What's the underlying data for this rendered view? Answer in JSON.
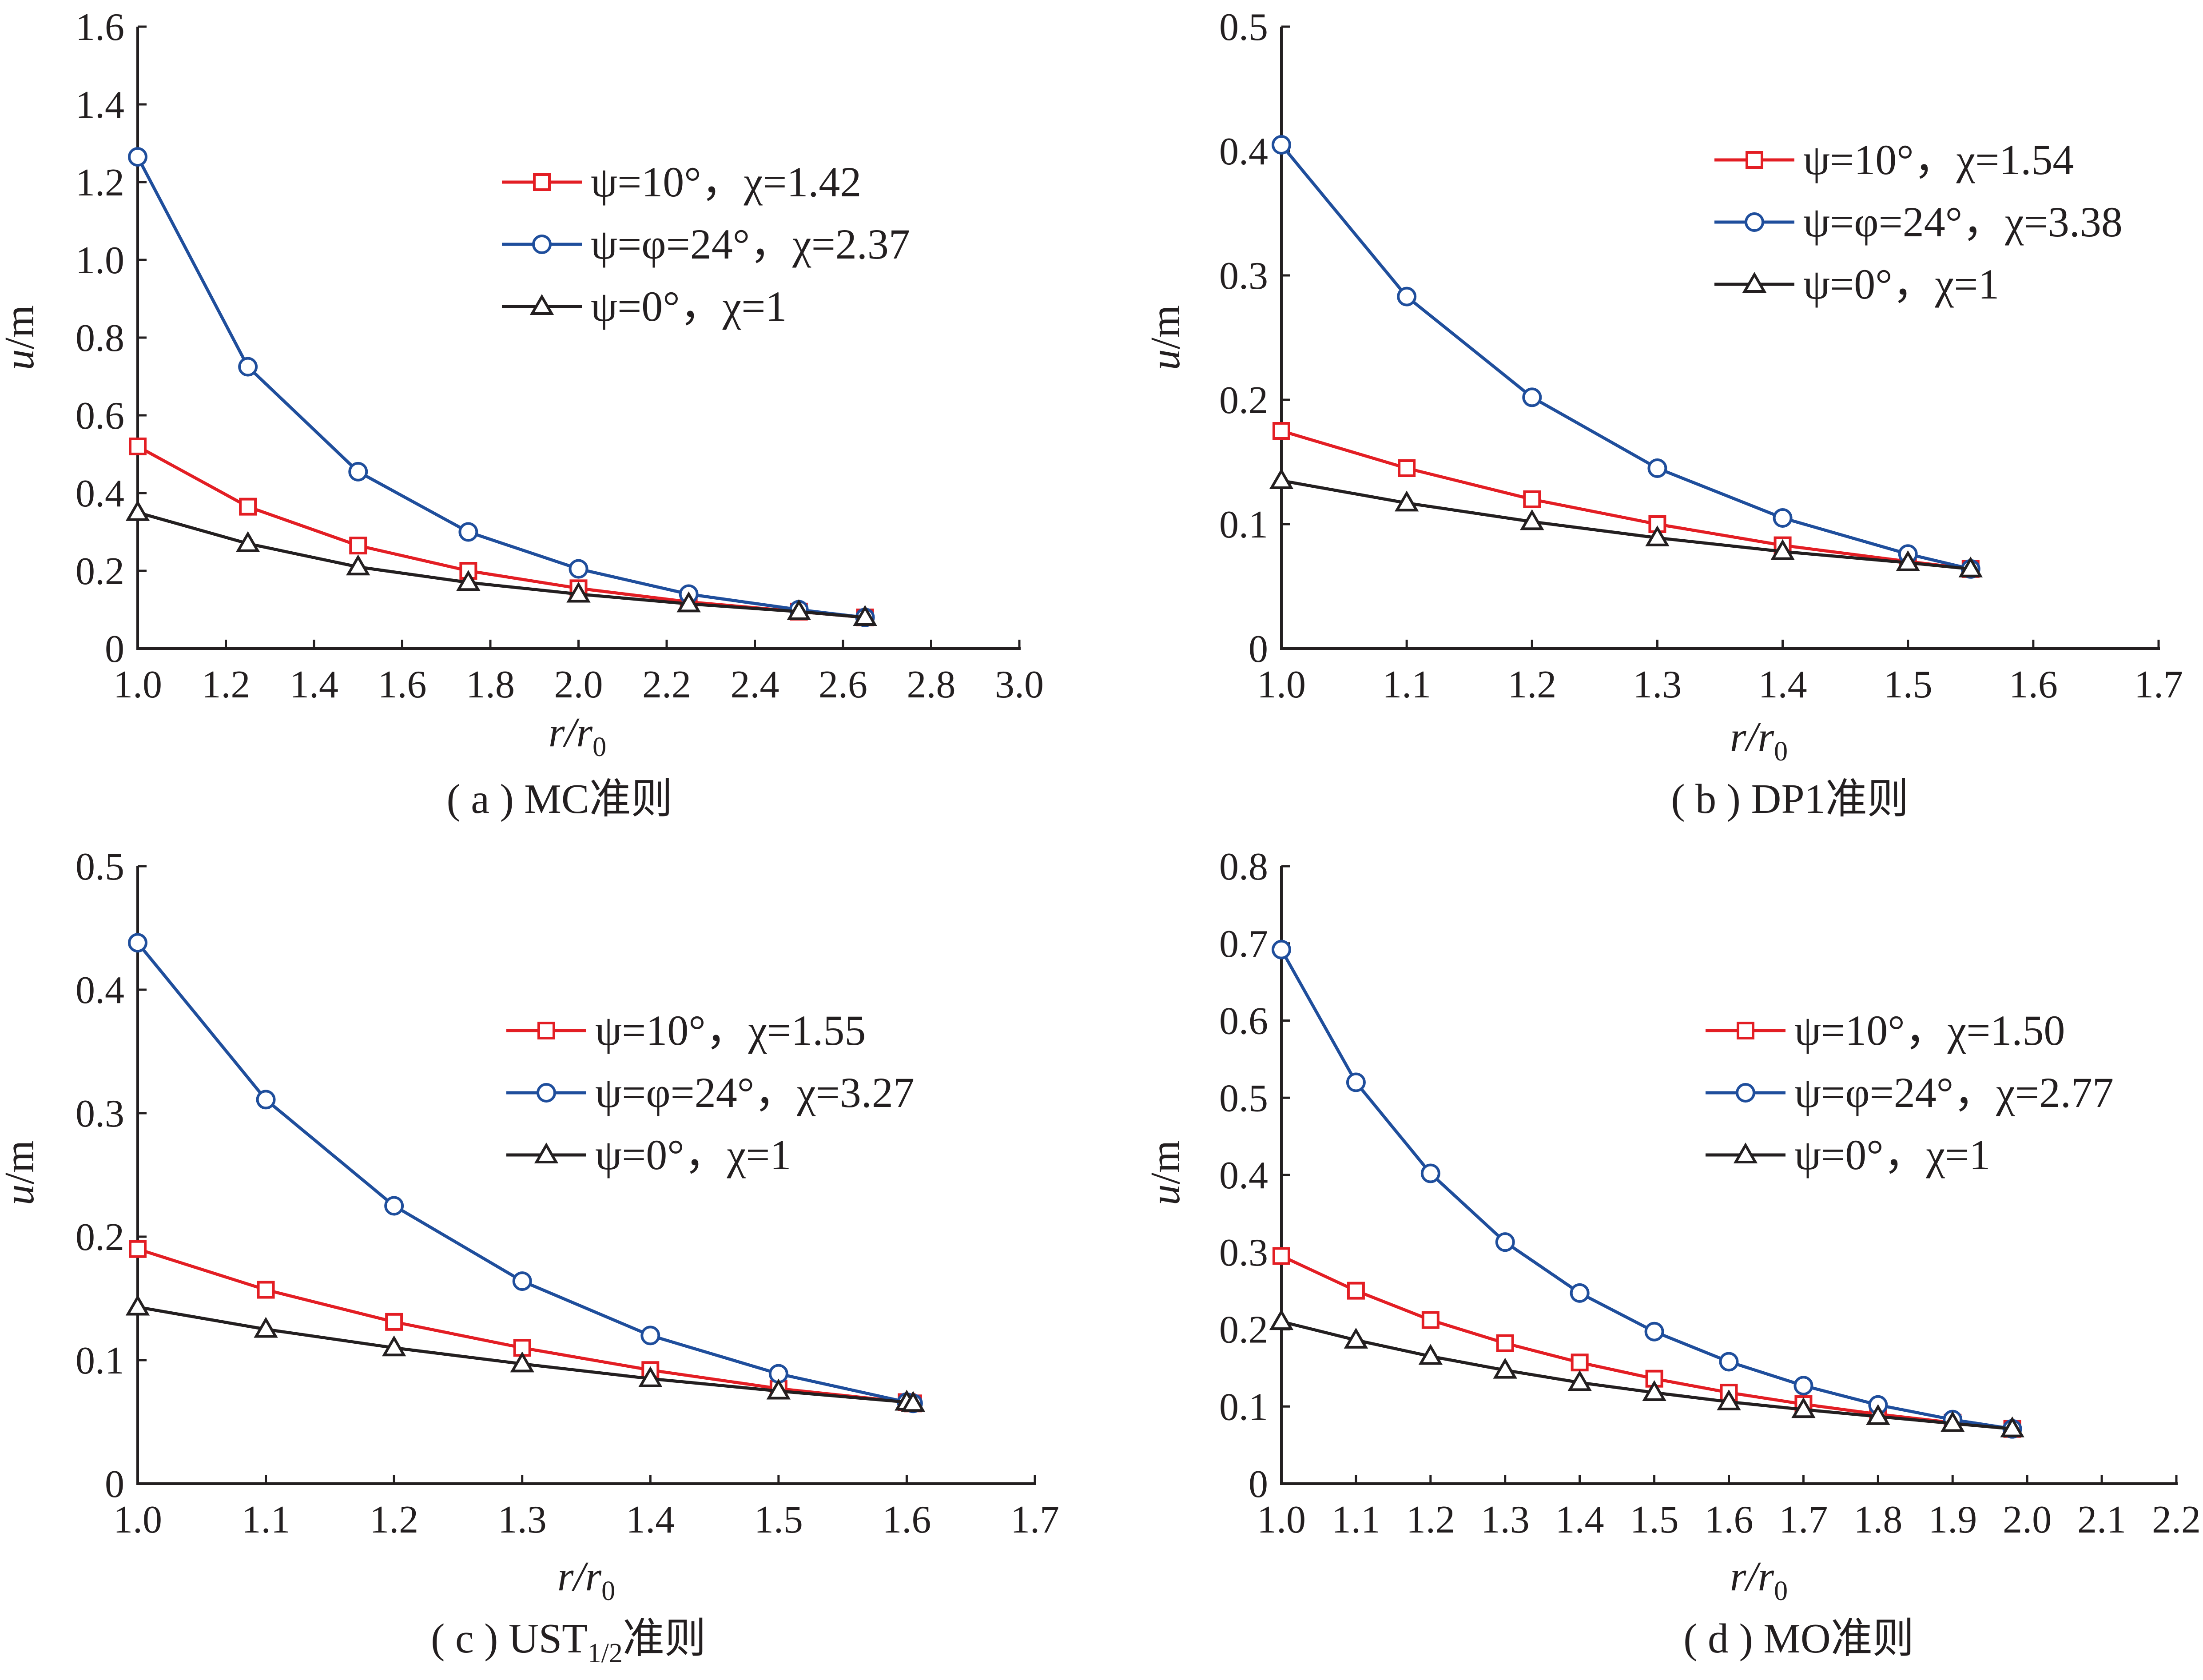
{
  "colors": {
    "red": "#e31e24",
    "blue": "#1f4e9c",
    "black": "#231f20"
  },
  "chart_data": [
    {
      "type": "line",
      "caption": "( a ) MC准则",
      "xlabel": "r/r0",
      "ylabel": "u/m",
      "xlim": [
        1.0,
        3.0
      ],
      "ylim": [
        0,
        1.6
      ],
      "xticks": [
        "1.0",
        "1.2",
        "1.4",
        "1.6",
        "1.8",
        "2.0",
        "2.2",
        "2.4",
        "2.6",
        "2.8",
        "3.0"
      ],
      "yticks": [
        "0",
        "0.2",
        "0.4",
        "0.6",
        "0.8",
        "1.0",
        "1.2",
        "1.4",
        "1.6"
      ],
      "legend_position": "top-right",
      "series": [
        {
          "name": "ψ=10°，χ=1.42",
          "color": "red",
          "marker": "square",
          "x": [
            1.0,
            1.25,
            1.5,
            1.75,
            2.0,
            2.25,
            2.5,
            2.65
          ],
          "y": [
            0.52,
            0.365,
            0.265,
            0.2,
            0.155,
            0.12,
            0.095,
            0.08
          ]
        },
        {
          "name": "ψ=φ=24°，χ=2.37",
          "color": "blue",
          "marker": "circle",
          "x": [
            1.0,
            1.25,
            1.5,
            1.75,
            2.0,
            2.25,
            2.5,
            2.65
          ],
          "y": [
            1.265,
            0.725,
            0.455,
            0.3,
            0.205,
            0.14,
            0.1,
            0.08
          ]
        },
        {
          "name": "ψ=0°，χ=1",
          "color": "black",
          "marker": "triangle",
          "x": [
            1.0,
            1.25,
            1.5,
            1.75,
            2.0,
            2.25,
            2.5,
            2.65
          ],
          "y": [
            0.35,
            0.27,
            0.21,
            0.17,
            0.14,
            0.115,
            0.095,
            0.08
          ]
        }
      ]
    },
    {
      "type": "line",
      "caption": "( b ) DP1准则",
      "xlabel": "r/r0",
      "ylabel": "u/m",
      "xlim": [
        1.0,
        1.7
      ],
      "ylim": [
        0,
        0.5
      ],
      "xticks": [
        "1.0",
        "1.1",
        "1.2",
        "1.3",
        "1.4",
        "1.5",
        "1.6",
        "1.7"
      ],
      "yticks": [
        "0",
        "0.1",
        "0.2",
        "0.3",
        "0.4",
        "0.5"
      ],
      "legend_position": "top-right",
      "series": [
        {
          "name": "ψ=10°，χ=1.54",
          "color": "red",
          "marker": "square",
          "x": [
            1.0,
            1.1,
            1.2,
            1.3,
            1.4,
            1.5,
            1.55
          ],
          "y": [
            0.175,
            0.145,
            0.12,
            0.1,
            0.083,
            0.07,
            0.064
          ]
        },
        {
          "name": "ψ=φ=24°，χ=3.38",
          "color": "blue",
          "marker": "circle",
          "x": [
            1.0,
            1.1,
            1.2,
            1.3,
            1.4,
            1.5,
            1.55
          ],
          "y": [
            0.405,
            0.283,
            0.202,
            0.145,
            0.105,
            0.076,
            0.064
          ]
        },
        {
          "name": "ψ=0°，χ=1",
          "color": "black",
          "marker": "triangle",
          "x": [
            1.0,
            1.1,
            1.2,
            1.3,
            1.4,
            1.5,
            1.55
          ],
          "y": [
            0.135,
            0.117,
            0.102,
            0.089,
            0.078,
            0.069,
            0.064
          ]
        }
      ]
    },
    {
      "type": "line",
      "caption_prefix": "( c ) UST",
      "caption_sub": "1/2",
      "caption_suffix": "准则",
      "xlabel": "r/r0",
      "ylabel": "u/m",
      "xlim": [
        1.0,
        1.7
      ],
      "ylim": [
        0,
        0.5
      ],
      "xticks": [
        "1.0",
        "1.1",
        "1.2",
        "1.3",
        "1.4",
        "1.5",
        "1.6",
        "1.7"
      ],
      "yticks": [
        "0",
        "0.1",
        "0.2",
        "0.3",
        "0.4",
        "0.5"
      ],
      "legend_position": "right",
      "series": [
        {
          "name": "ψ=10°，χ=1.55",
          "color": "red",
          "marker": "square",
          "x": [
            1.0,
            1.1,
            1.2,
            1.3,
            1.4,
            1.5,
            1.6,
            1.605
          ],
          "y": [
            0.19,
            0.157,
            0.131,
            0.11,
            0.092,
            0.077,
            0.066,
            0.065
          ]
        },
        {
          "name": "ψ=φ=24°，χ=3.27",
          "color": "blue",
          "marker": "circle",
          "x": [
            1.0,
            1.1,
            1.2,
            1.3,
            1.4,
            1.5,
            1.6,
            1.605
          ],
          "y": [
            0.438,
            0.311,
            0.225,
            0.164,
            0.12,
            0.089,
            0.066,
            0.065
          ]
        },
        {
          "name": "ψ=0°，χ=1",
          "color": "black",
          "marker": "triangle",
          "x": [
            1.0,
            1.1,
            1.2,
            1.3,
            1.4,
            1.5,
            1.6,
            1.605
          ],
          "y": [
            0.143,
            0.125,
            0.11,
            0.097,
            0.085,
            0.075,
            0.066,
            0.065
          ]
        }
      ]
    },
    {
      "type": "line",
      "caption": "( d ) MO准则",
      "xlabel": "r/r0",
      "ylabel": "u/m",
      "xlim": [
        1.0,
        2.2
      ],
      "ylim": [
        0,
        0.8
      ],
      "xticks": [
        "1.0",
        "1.1",
        "1.2",
        "1.3",
        "1.4",
        "1.5",
        "1.6",
        "1.7",
        "1.8",
        "1.9",
        "2.0",
        "2.1",
        "2.2"
      ],
      "yticks": [
        "0",
        "0.1",
        "0.2",
        "0.3",
        "0.4",
        "0.5",
        "0.6",
        "0.7",
        "0.8"
      ],
      "legend_position": "right",
      "series": [
        {
          "name": "ψ=10°，χ=1.50",
          "color": "red",
          "marker": "square",
          "x": [
            1.0,
            1.1,
            1.2,
            1.3,
            1.4,
            1.5,
            1.6,
            1.7,
            1.8,
            1.9,
            1.98
          ],
          "y": [
            0.295,
            0.25,
            0.212,
            0.182,
            0.157,
            0.136,
            0.118,
            0.103,
            0.09,
            0.079,
            0.071
          ]
        },
        {
          "name": "ψ=φ=24°，χ=2.77",
          "color": "blue",
          "marker": "circle",
          "x": [
            1.0,
            1.1,
            1.2,
            1.3,
            1.4,
            1.5,
            1.6,
            1.7,
            1.8,
            1.9,
            1.98
          ],
          "y": [
            0.692,
            0.52,
            0.402,
            0.313,
            0.247,
            0.197,
            0.158,
            0.127,
            0.102,
            0.083,
            0.071
          ]
        },
        {
          "name": "ψ=0°，χ=1",
          "color": "black",
          "marker": "triangle",
          "x": [
            1.0,
            1.1,
            1.2,
            1.3,
            1.4,
            1.5,
            1.6,
            1.7,
            1.8,
            1.9,
            1.98
          ],
          "y": [
            0.21,
            0.186,
            0.165,
            0.147,
            0.131,
            0.118,
            0.106,
            0.096,
            0.087,
            0.078,
            0.071
          ]
        }
      ]
    }
  ]
}
